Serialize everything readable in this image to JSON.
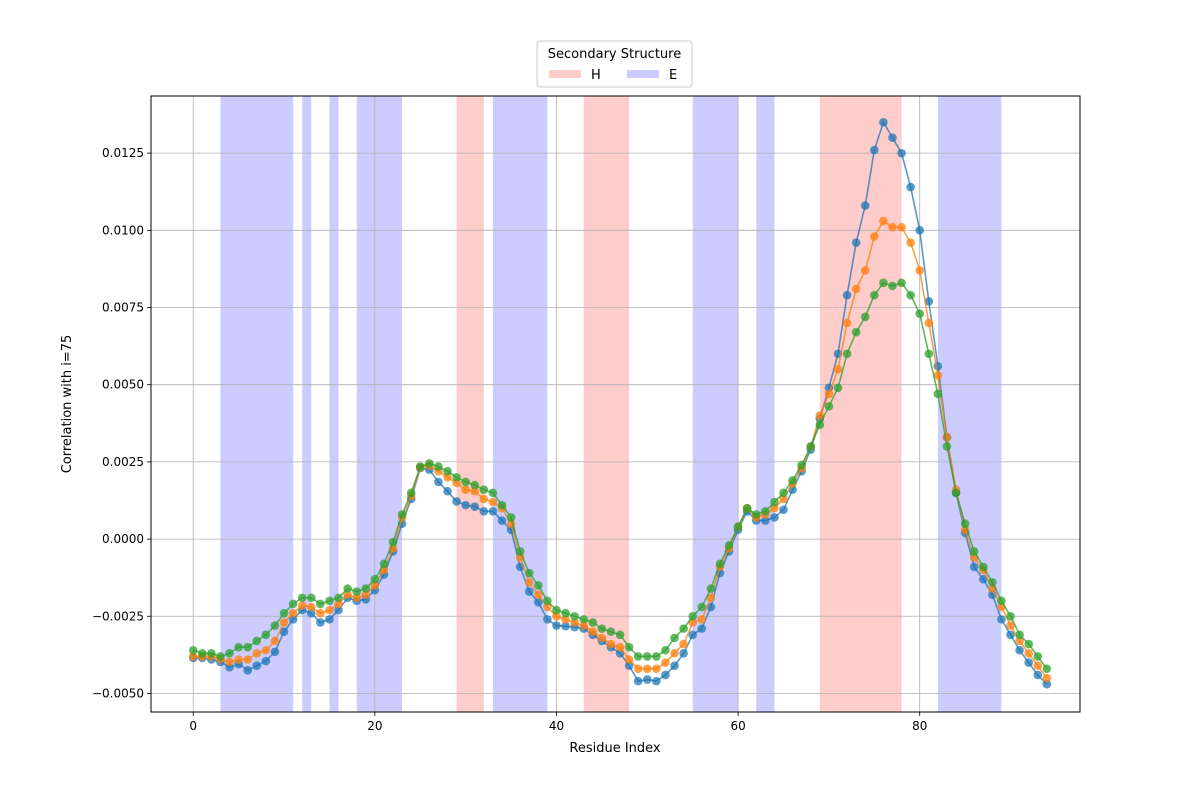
{
  "chart_data": {
    "type": "line",
    "xlabel": "Residue Index",
    "ylabel": "Correlation with i=75",
    "xlim": [
      -4.65,
      97.65
    ],
    "ylim": [
      -0.0056,
      0.01435
    ],
    "xticks": [
      0,
      20,
      40,
      60,
      80
    ],
    "yticks": [
      -0.005,
      -0.0025,
      0.0,
      0.0025,
      0.005,
      0.0075,
      0.01,
      0.0125
    ],
    "ytick_labels": [
      "−0.0050",
      "−0.0025",
      "0.0000",
      "0.0025",
      "0.0050",
      "0.0075",
      "0.0100",
      "0.0125"
    ],
    "grid": true,
    "legend": {
      "title": "Secondary Structure",
      "placement": "upper-center-outside",
      "entries": [
        {
          "label": "H",
          "color": "#ff9999"
        },
        {
          "label": "E",
          "color": "#9999ff"
        }
      ]
    },
    "regions": [
      {
        "type": "E",
        "start": 3,
        "end": 11
      },
      {
        "type": "E",
        "start": 12,
        "end": 13
      },
      {
        "type": "E",
        "start": 15,
        "end": 16
      },
      {
        "type": "E",
        "start": 18,
        "end": 23
      },
      {
        "type": "H",
        "start": 29,
        "end": 32
      },
      {
        "type": "E",
        "start": 33,
        "end": 39
      },
      {
        "type": "H",
        "start": 43,
        "end": 48
      },
      {
        "type": "E",
        "start": 55,
        "end": 60
      },
      {
        "type": "E",
        "start": 62,
        "end": 64
      },
      {
        "type": "H",
        "start": 69,
        "end": 78
      },
      {
        "type": "E",
        "start": 82,
        "end": 89
      }
    ],
    "region_colors": {
      "H": "#ff9999",
      "E": "#9999ff"
    },
    "series": [
      {
        "color": "#1f77b4",
        "values": [
          -0.00385,
          -0.00385,
          -0.0039,
          -0.00398,
          -0.00415,
          -0.00405,
          -0.00425,
          -0.0041,
          -0.00395,
          -0.00365,
          -0.003,
          -0.0026,
          -0.0023,
          -0.0024,
          -0.0027,
          -0.0026,
          -0.0023,
          -0.0019,
          -0.002,
          -0.00195,
          -0.00165,
          -0.00115,
          -0.0004,
          0.0005,
          0.0013,
          0.0023,
          0.00225,
          0.00185,
          0.00155,
          0.00122,
          0.0011,
          0.00105,
          0.0009,
          0.0009,
          0.0006,
          0.0003,
          -0.0009,
          -0.0017,
          -0.00205,
          -0.0026,
          -0.0028,
          -0.00282,
          -0.00285,
          -0.0029,
          -0.0031,
          -0.0033,
          -0.0035,
          -0.0037,
          -0.0041,
          -0.0046,
          -0.00455,
          -0.0046,
          -0.0044,
          -0.0041,
          -0.0037,
          -0.0031,
          -0.0029,
          -0.0022,
          -0.0011,
          -0.0004,
          0.0003,
          0.0009,
          0.0006,
          0.0006,
          0.0007,
          0.00095,
          0.0016,
          0.0022,
          0.0029,
          0.0039,
          0.0049,
          0.006,
          0.0079,
          0.0096,
          0.0108,
          0.0126,
          0.0135,
          0.013,
          0.0125,
          0.0114,
          0.01,
          0.0077,
          0.0056,
          0.0033,
          0.0015,
          0.0002,
          -0.0009,
          -0.0013,
          -0.0018,
          -0.0026,
          -0.0031,
          -0.0036,
          -0.004,
          -0.0044,
          -0.0047
        ]
      },
      {
        "color": "#ff7f0e",
        "values": [
          -0.0038,
          -0.0038,
          -0.0038,
          -0.00388,
          -0.00398,
          -0.0039,
          -0.0039,
          -0.0037,
          -0.0036,
          -0.0033,
          -0.0027,
          -0.0024,
          -0.00215,
          -0.0022,
          -0.0024,
          -0.0023,
          -0.0021,
          -0.0018,
          -0.0019,
          -0.0018,
          -0.0015,
          -0.001,
          -0.0003,
          0.0007,
          0.0014,
          0.00232,
          0.00238,
          0.0022,
          0.002,
          0.00182,
          0.0016,
          0.00155,
          0.0013,
          0.0012,
          0.001,
          0.0005,
          -0.0006,
          -0.0014,
          -0.0018,
          -0.0022,
          -0.0025,
          -0.0026,
          -0.0027,
          -0.0028,
          -0.003,
          -0.0032,
          -0.0034,
          -0.0035,
          -0.0039,
          -0.0042,
          -0.0042,
          -0.0042,
          -0.004,
          -0.0037,
          -0.0034,
          -0.0027,
          -0.0026,
          -0.0019,
          -0.0009,
          -0.0003,
          0.0004,
          0.001,
          0.0007,
          0.0008,
          0.001,
          0.0013,
          0.0018,
          0.0023,
          0.003,
          0.004,
          0.0047,
          0.0055,
          0.007,
          0.0081,
          0.0087,
          0.0098,
          0.0103,
          0.0101,
          0.0101,
          0.0096,
          0.0087,
          0.007,
          0.0053,
          0.0033,
          0.0016,
          0.0003,
          -0.0006,
          -0.001,
          -0.0016,
          -0.0022,
          -0.0028,
          -0.0033,
          -0.0037,
          -0.0041,
          -0.0045
        ]
      },
      {
        "color": "#2ca02c",
        "values": [
          -0.0036,
          -0.0037,
          -0.0037,
          -0.0038,
          -0.0037,
          -0.0035,
          -0.0035,
          -0.0033,
          -0.0031,
          -0.0028,
          -0.0024,
          -0.0021,
          -0.0019,
          -0.0019,
          -0.0021,
          -0.002,
          -0.0019,
          -0.0016,
          -0.0017,
          -0.0016,
          -0.0013,
          -0.0008,
          -0.0001,
          0.0008,
          0.0015,
          0.00235,
          0.00245,
          0.00235,
          0.0022,
          0.002,
          0.00185,
          0.00175,
          0.0016,
          0.0015,
          0.0011,
          0.0007,
          -0.0004,
          -0.0011,
          -0.0015,
          -0.002,
          -0.0023,
          -0.0024,
          -0.0025,
          -0.0026,
          -0.0027,
          -0.0029,
          -0.003,
          -0.0031,
          -0.0035,
          -0.0038,
          -0.0038,
          -0.0038,
          -0.0036,
          -0.0032,
          -0.0029,
          -0.0025,
          -0.0022,
          -0.0016,
          -0.0008,
          -0.0002,
          0.0004,
          0.001,
          0.0008,
          0.0009,
          0.0012,
          0.0015,
          0.0019,
          0.0024,
          0.003,
          0.0037,
          0.0043,
          0.0049,
          0.006,
          0.0067,
          0.0072,
          0.0079,
          0.0083,
          0.0082,
          0.0083,
          0.0079,
          0.0073,
          0.006,
          0.0047,
          0.003,
          0.0015,
          0.0005,
          -0.0004,
          -0.0009,
          -0.0014,
          -0.002,
          -0.0025,
          -0.0031,
          -0.0034,
          -0.0038,
          -0.0042
        ]
      }
    ]
  }
}
